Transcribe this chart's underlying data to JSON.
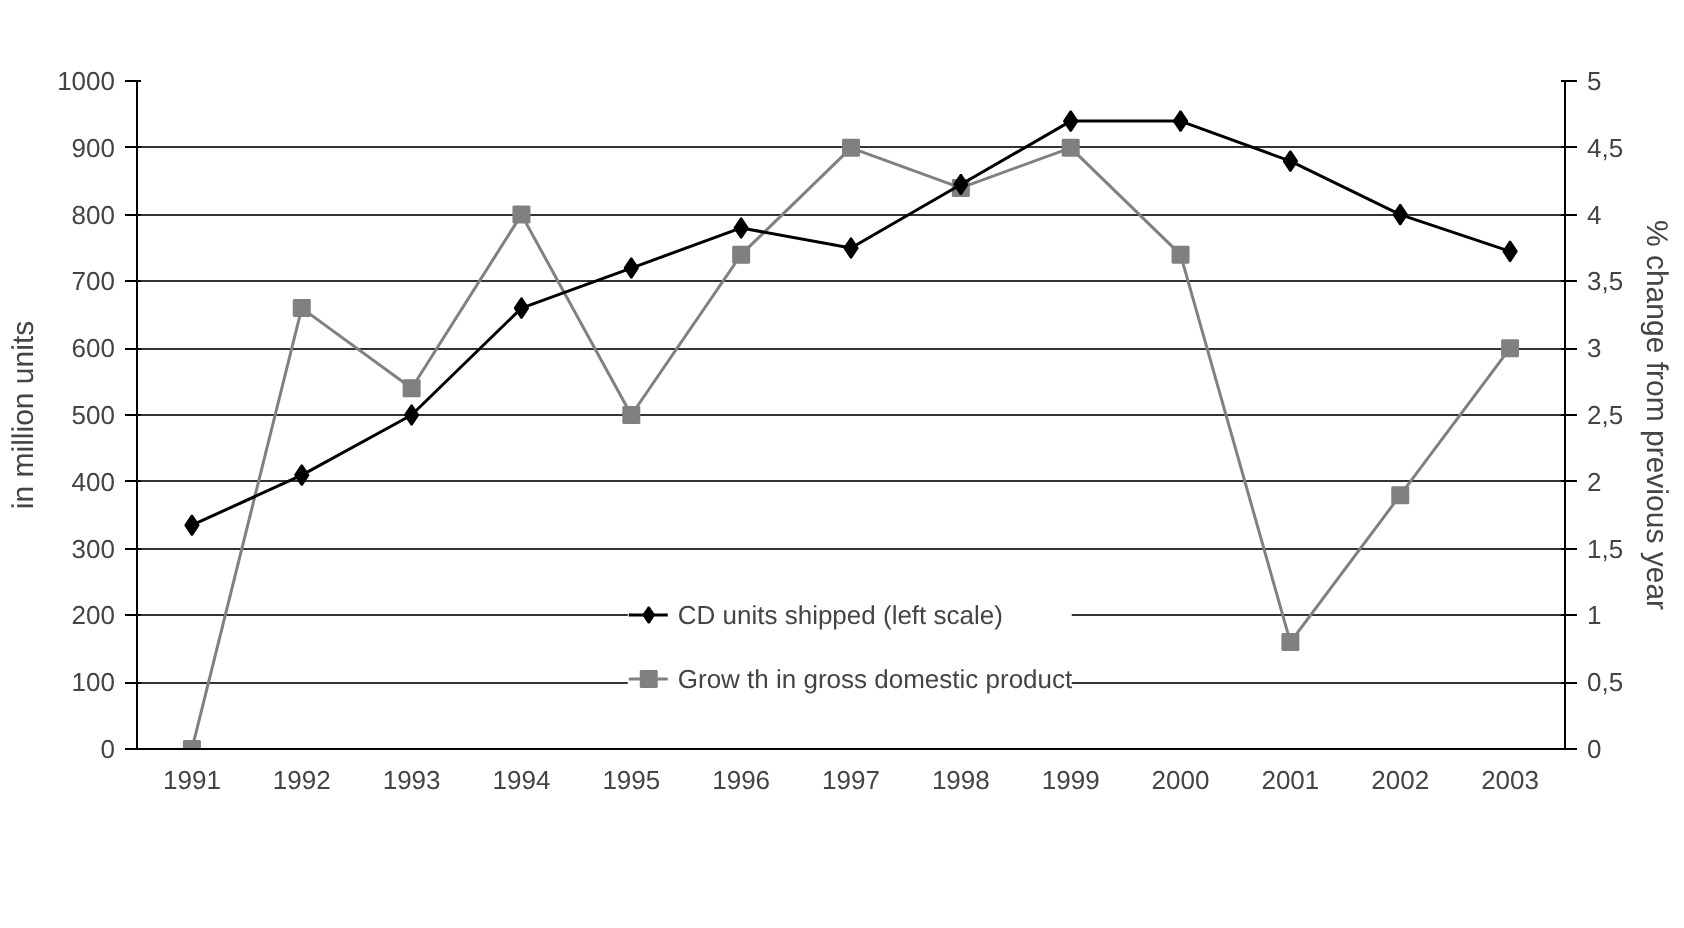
{
  "chart_data": {
    "type": "line",
    "ylabel": "in million units",
    "y2label": "% change from previous year",
    "categories": [
      "1991",
      "1992",
      "1993",
      "1994",
      "1995",
      "1996",
      "1997",
      "1998",
      "1999",
      "2000",
      "2001",
      "2002",
      "2003"
    ],
    "series": [
      {
        "name": "CD units shipped (left scale)",
        "color": "#000000",
        "marker": "diamond",
        "values": [
          335,
          410,
          500,
          660,
          720,
          780,
          750,
          845,
          940,
          940,
          880,
          800,
          745
        ]
      },
      {
        "name": "Grow th in gross domestic product",
        "color": "#808080",
        "marker": "square",
        "axis": "y2",
        "values": [
          0,
          3.3,
          2.7,
          4.0,
          2.5,
          3.7,
          4.5,
          4.2,
          4.5,
          3.7,
          0.8,
          1.9,
          3.0
        ]
      }
    ],
    "ylim": [
      0,
      1000
    ],
    "yticks": [
      0,
      100,
      200,
      300,
      400,
      500,
      600,
      700,
      800,
      900,
      1000
    ],
    "y2lim": [
      0,
      5
    ],
    "y2ticks": [
      0,
      {
        "value": 0.5,
        "label": "0,5"
      },
      1,
      {
        "value": 1.5,
        "label": "1,5"
      },
      2,
      {
        "value": 2.5,
        "label": "2,5"
      },
      3,
      {
        "value": 3.5,
        "label": "3,5"
      },
      4,
      {
        "value": 4.5,
        "label": "4,5"
      },
      5
    ],
    "grid": "y",
    "legend": "bottom"
  }
}
